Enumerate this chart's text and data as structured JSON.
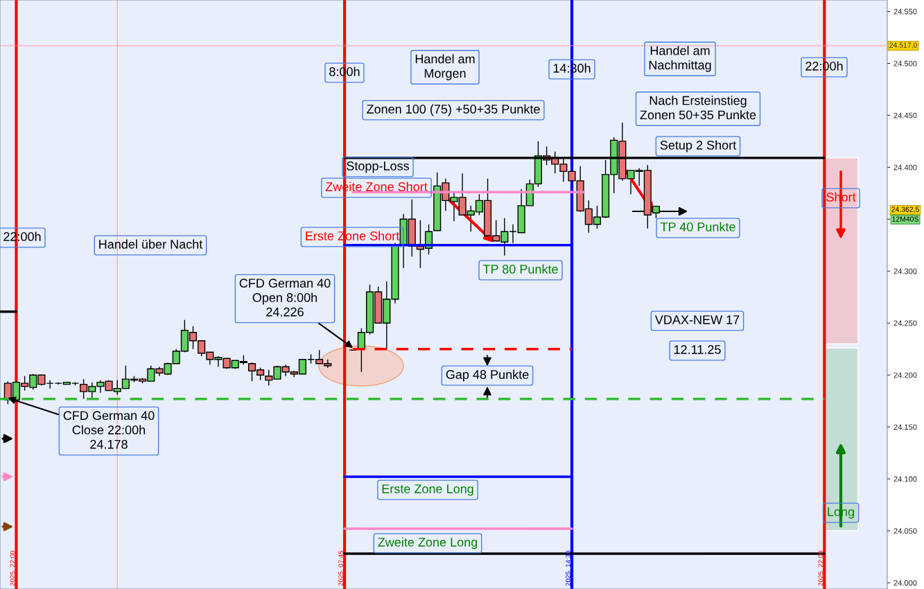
{
  "chart_data": {
    "type": "candlestick",
    "x": [
      "2025-11-11T21:45",
      "2025-11-11T22:00",
      "2025-11-11T22:15",
      "2025-11-11T22:30",
      "2025-11-11T22:45",
      "2025-11-11T23:00",
      "2025-11-11T23:15",
      "2025-11-11T23:30",
      "2025-11-11T23:45",
      "2025-11-12T00:00",
      "2025-11-12T00:15",
      "2025-11-12T00:30",
      "2025-11-12T00:45",
      "2025-11-12T01:00",
      "2025-11-12T01:15",
      "2025-11-12T01:30",
      "2025-11-12T01:45",
      "2025-11-12T02:00",
      "2025-11-12T02:15",
      "2025-11-12T02:30",
      "2025-11-12T02:45",
      "2025-11-12T03:00",
      "2025-11-12T03:15",
      "2025-11-12T03:30",
      "2025-11-12T03:45",
      "2025-11-12T04:00",
      "2025-11-12T04:15",
      "2025-11-12T04:30",
      "2025-11-12T04:45",
      "2025-11-12T05:00",
      "2025-11-12T05:15",
      "2025-11-12T05:30",
      "2025-11-12T05:45",
      "2025-11-12T06:00",
      "2025-11-12T06:15",
      "2025-11-12T06:30",
      "2025-11-12T06:45",
      "2025-11-12T07:00",
      "2025-11-12T07:15",
      "2025-11-12T08:00",
      "2025-11-12T08:15",
      "2025-11-12T08:30",
      "2025-11-12T08:45",
      "2025-11-12T09:00",
      "2025-11-12T09:15",
      "2025-11-12T09:30",
      "2025-11-12T09:45",
      "2025-11-12T10:00",
      "2025-11-12T10:15",
      "2025-11-12T10:30",
      "2025-11-12T10:45",
      "2025-11-12T11:00",
      "2025-11-12T11:15",
      "2025-11-12T11:30",
      "2025-11-12T11:45",
      "2025-11-12T12:00",
      "2025-11-12T12:15",
      "2025-11-12T12:30",
      "2025-11-12T12:45",
      "2025-11-12T13:00",
      "2025-11-12T13:15",
      "2025-11-12T13:30",
      "2025-11-12T13:45",
      "2025-11-12T14:00",
      "2025-11-12T14:15",
      "2025-11-12T14:30",
      "2025-11-12T14:45",
      "2025-11-12T15:00",
      "2025-11-12T15:15",
      "2025-11-12T15:30",
      "2025-11-12T15:45",
      "2025-11-12T16:00",
      "2025-11-12T16:15",
      "2025-11-12T16:30",
      "2025-11-12T16:45",
      "2025-11-12T17:00"
    ],
    "ohlc": [
      [
        24192,
        24194,
        24172,
        24176
      ],
      [
        24176,
        24194,
        24175,
        24193
      ],
      [
        24192,
        24199,
        24185,
        24189
      ],
      [
        24188,
        24201,
        24186,
        24200
      ],
      [
        24200,
        24200,
        24190,
        24191
      ],
      [
        24192,
        24195,
        24187,
        24192
      ],
      [
        24192,
        24193,
        24191,
        24192
      ],
      [
        24191,
        24193,
        24191,
        24193
      ],
      [
        24192,
        24193,
        24190,
        24192
      ],
      [
        24191,
        24196,
        24177,
        24184
      ],
      [
        24184,
        24193,
        24178,
        24189
      ],
      [
        24189,
        24195,
        24183,
        24193
      ],
      [
        24194,
        24195,
        24185,
        24185
      ],
      [
        24184,
        24195,
        24181,
        24187
      ],
      [
        24187,
        24209,
        24187,
        24196
      ],
      [
        24195,
        24199,
        24193,
        24196
      ],
      [
        24196,
        24197,
        24192,
        24194
      ],
      [
        24194,
        24209,
        24194,
        24206
      ],
      [
        24206,
        24208,
        24199,
        24202
      ],
      [
        24201,
        24212,
        24200,
        24211
      ],
      [
        24211,
        24225,
        24211,
        24223
      ],
      [
        24223,
        24253,
        24222,
        24243
      ],
      [
        24241,
        24247,
        24225,
        24233
      ],
      [
        24233,
        24233,
        24218,
        24221
      ],
      [
        24222,
        24222,
        24210,
        24215
      ],
      [
        24215,
        24218,
        24208,
        24217
      ],
      [
        24216,
        24216,
        24206,
        24207
      ],
      [
        24207,
        24214,
        24206,
        24214
      ],
      [
        24213,
        24219,
        24210,
        24212
      ],
      [
        24211,
        24212,
        24194,
        24204
      ],
      [
        24205,
        24207,
        24195,
        24200
      ],
      [
        24199,
        24205,
        24190,
        24195
      ],
      [
        24196,
        24209,
        24196,
        24208
      ],
      [
        24208,
        24210,
        24199,
        24203
      ],
      [
        24203,
        24204,
        24198,
        24201
      ],
      [
        24201,
        24215,
        24201,
        24215
      ],
      [
        24215,
        24220,
        24211,
        24215
      ],
      [
        24215,
        24224,
        24211,
        24211
      ],
      [
        24211,
        24215,
        24207,
        24209
      ],
      [
        24224,
        24224,
        24224,
        24224
      ],
      [
        24225,
        24245,
        24203,
        24241
      ],
      [
        24241,
        24287,
        24239,
        24280
      ],
      [
        24280,
        24285,
        24250,
        24250
      ],
      [
        24250,
        24290,
        24225,
        24273
      ],
      [
        24273,
        24327,
        24269,
        24325
      ],
      [
        24325,
        24355,
        24303,
        24350
      ],
      [
        24350,
        24369,
        24314,
        24324
      ],
      [
        24324,
        24349,
        24303,
        24321
      ],
      [
        24322,
        24345,
        24316,
        24338
      ],
      [
        24339,
        24395,
        24339,
        24382
      ],
      [
        24385,
        24389,
        24358,
        24368
      ],
      [
        24367,
        24376,
        24348,
        24371
      ],
      [
        24371,
        24394,
        24354,
        24354
      ],
      [
        24354,
        24363,
        24338,
        24358
      ],
      [
        24357,
        24374,
        24354,
        24368
      ],
      [
        24368,
        24389,
        24334,
        24334
      ],
      [
        24334,
        24349,
        24329,
        24329
      ],
      [
        24328,
        24351,
        24315,
        24338
      ],
      [
        24338,
        24345,
        24327,
        24338
      ],
      [
        24337,
        24379,
        24337,
        24363
      ],
      [
        24363,
        24388,
        24363,
        24384
      ],
      [
        24384,
        24425,
        24381,
        24411
      ],
      [
        24411,
        24420,
        24402,
        24407
      ],
      [
        24409,
        24415,
        24394,
        24403
      ],
      [
        24403,
        24408,
        24386,
        24396
      ],
      [
        24396,
        24396,
        24387,
        24387
      ],
      [
        24387,
        24401,
        24357,
        24358
      ],
      [
        24360,
        24368,
        24337,
        24345
      ],
      [
        24345,
        24363,
        24341,
        24352
      ],
      [
        24352,
        24407,
        24351,
        24393
      ],
      [
        24393,
        24429,
        24375,
        24426
      ],
      [
        24425,
        24443,
        24387,
        24389
      ],
      [
        24389,
        24397,
        24374,
        24397
      ],
      [
        24396,
        24399,
        24382,
        24397
      ],
      [
        24397,
        24402,
        24341,
        24354
      ],
      [
        24356,
        24362.5,
        24351,
        24362.5
      ]
    ],
    "colors": [
      "#e57373",
      "#5ed35e",
      "#e57373",
      "#5ed35e",
      "#e57373",
      "#000000",
      "#000000",
      "#5ed35e",
      "#000000",
      "#e57373",
      "#5ed35e",
      "#5ed35e",
      "#e57373",
      "#5ed35e",
      "#5ed35e",
      "#5ed35e",
      "#e57373",
      "#5ed35e",
      "#e57373",
      "#5ed35e",
      "#5ed35e",
      "#5ed35e",
      "#e57373",
      "#e57373",
      "#e57373",
      "#5ed35e",
      "#e57373",
      "#5ed35e",
      "#e57373",
      "#e57373",
      "#e57373",
      "#e57373",
      "#5ed35e",
      "#e57373",
      "#e57373",
      "#5ed35e",
      "#000000",
      "#e57373",
      "#e57373",
      "#000000",
      "#5ed35e",
      "#5ed35e",
      "#e57373",
      "#5ed35e",
      "#5ed35e",
      "#5ed35e",
      "#e57373",
      "#e57373",
      "#5ed35e",
      "#5ed35e",
      "#e57373",
      "#5ed35e",
      "#e57373",
      "#5ed35e",
      "#5ed35e",
      "#e57373",
      "#e57373",
      "#5ed35e",
      "#000000",
      "#5ed35e",
      "#5ed35e",
      "#5ed35e",
      "#e57373",
      "#e57373",
      "#e57373",
      "#e57373",
      "#e57373",
      "#e57373",
      "#5ed35e",
      "#5ed35e",
      "#5ed35e",
      "#e57373",
      "#5ed35e",
      "#5ed35e",
      "#e57373",
      "#5ed35e"
    ],
    "series": [
      {
        "type": "bar",
        "x": [
          "2025-11-12T22:30"
        ],
        "base": [
          24230
        ],
        "values": [
          179
        ],
        "color": "#efc9d2"
      },
      {
        "type": "bar",
        "x": [
          "2025-11-12T22:30"
        ],
        "base": [
          24050
        ],
        "values": [
          176
        ],
        "color": "#c3ddd5"
      },
      {
        "type": "line",
        "x": [
          "2025-11-11T21:31",
          "2025-11-11T22:00"
        ],
        "values": [
          24261,
          24261
        ],
        "color": "#000000",
        "line_style": "solid"
      },
      {
        "type": "line",
        "x": [
          "2025-11-12T07:45",
          "2025-11-12T22:00"
        ],
        "values": [
          24409,
          24409
        ],
        "color": "#000000",
        "line_style": "solid"
      },
      {
        "type": "line",
        "x": [
          "2025-11-12T08:00",
          "2025-11-12T14:51"
        ],
        "values": [
          24376,
          24376
        ],
        "color": "#ff88c8",
        "line_style": "solid"
      },
      {
        "type": "line",
        "x": [
          "2025-11-12T07:45",
          "2025-11-12T14:30"
        ],
        "values": [
          24325,
          24325
        ],
        "color": "#0000ff",
        "line_style": "solid"
      },
      {
        "type": "line",
        "x": [
          "2025-11-12T08:00",
          "2025-11-12T14:30"
        ],
        "values": [
          24225,
          24225
        ],
        "color": "#ff0000",
        "line_style": "dashed"
      },
      {
        "type": "line",
        "x": [
          "2025-11-11T21:31",
          "2025-11-12T22:00"
        ],
        "values": [
          24177,
          24177
        ],
        "color": "#33bb33",
        "line_style": "dashed"
      },
      {
        "type": "line",
        "x": [
          "2025-11-12T07:45",
          "2025-11-12T14:30"
        ],
        "values": [
          24102,
          24102
        ],
        "color": "#0000ff",
        "line_style": "solid"
      },
      {
        "type": "line",
        "x": [
          "2025-11-12T07:45",
          "2025-11-12T14:30"
        ],
        "values": [
          24052,
          24052
        ],
        "color": "#ff88c8",
        "line_style": "solid"
      },
      {
        "type": "line",
        "x": [
          "2025-11-12T07:45",
          "2025-11-12T22:00"
        ],
        "values": [
          24028,
          24028
        ],
        "color": "#000000",
        "line_style": "solid"
      }
    ],
    "xlim": [
      "2025-11-11T21:31",
      "2025-11-12T23:52"
    ],
    "ylim": [
      23994,
      24561
    ],
    "xticks": [
      {
        "value": "2025-11-11T22:00",
        "label": "2025, 22:00"
      },
      {
        "value": "2025-11-12T07:45",
        "label": "2025, 07:45"
      },
      {
        "value": "2025-11-12T14:30",
        "label": "2025, 14:30"
      },
      {
        "value": "2025-11-12T22:00",
        "label": "2025, 22:00"
      }
    ],
    "yticks": [
      {
        "value": 24000,
        "label": "24.000"
      },
      {
        "value": 24050,
        "label": "24.050"
      },
      {
        "value": 24100,
        "label": "24.100"
      },
      {
        "value": 24150,
        "label": "24.150"
      },
      {
        "value": 24200,
        "label": "24.200"
      },
      {
        "value": 24250,
        "label": "24.250"
      },
      {
        "value": 24300,
        "label": "24.300"
      },
      {
        "value": 24350,
        "label": null
      },
      {
        "value": 24400,
        "label": "24.400"
      },
      {
        "value": 24450,
        "label": "24.450"
      },
      {
        "value": 24500,
        "label": "24.500"
      },
      {
        "value": 24550,
        "label": "24.550"
      }
    ],
    "ref_lines": [
      {
        "axis": "x",
        "value": "2025-11-11T22:00",
        "color": "#ff0000"
      },
      {
        "axis": "x",
        "value": "2025-11-12T01:00",
        "color": "#f0a0a0"
      },
      {
        "axis": "x",
        "value": "2025-11-12T07:45",
        "color": "#ff0000"
      },
      {
        "axis": "x",
        "value": "2025-11-12T14:30",
        "color": "#0000ff"
      },
      {
        "axis": "x",
        "value": "2025-11-12T22:00",
        "color": "#ff0000"
      },
      {
        "axis": "y",
        "value": 24517,
        "label": "24.517,0",
        "color": "#ff9999"
      }
    ],
    "annotations": [
      "8:00h",
      "Handel am\nMorgen",
      "14:30h",
      "Handel am\nNachmittag",
      "22:00h",
      "Zonen 100 (75) +50+35 Punkte",
      "Nach Ersteinstieg\nZonen 50+35 Punkte",
      "Setup 2 Short",
      "Stopp-Loss",
      "Zweite Zone Short",
      "Short",
      "TP 40 Punkte",
      "22:00h",
      "Handel über Nacht",
      "Erste Zone Short",
      "TP 80 Punkte",
      {
        "text": "CFD German 40\nOpen 8:00h\n24.226",
        "x": "2025-11-12T08:00",
        "y": 24226
      },
      "VDAX-NEW 17",
      "12.11.25",
      "Gap 48 Punkte",
      {
        "text": "CFD German 40\nClose 22:00h\n24.178",
        "x": "2025-11-11T21:45",
        "y": 24178
      },
      "Erste Zone Long",
      "Long",
      "Zweite Zone Long",
      "24.362,5",
      "12M40S"
    ]
  }
}
